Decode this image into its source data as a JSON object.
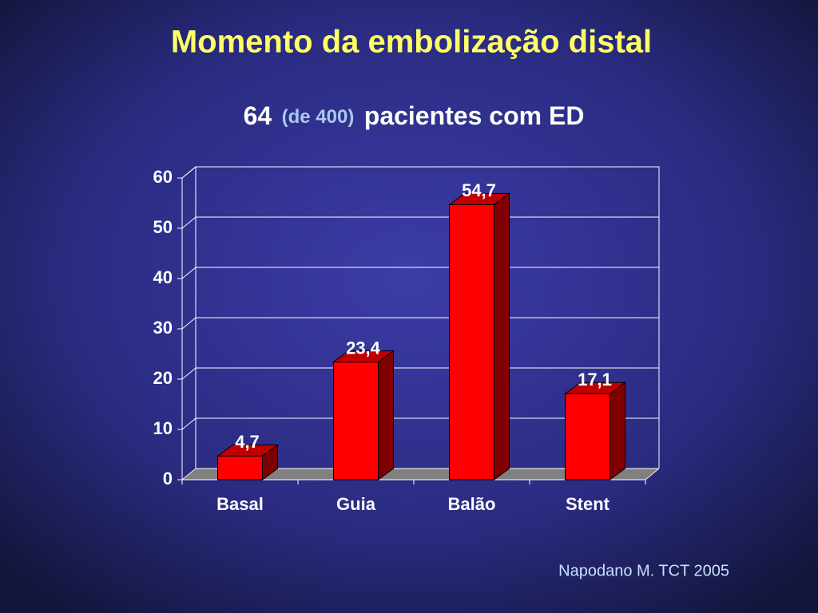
{
  "chart_data": {
    "type": "bar3d",
    "title": "Momento da embolização distal",
    "subtitle": [
      "64",
      "(de 400)",
      "pacientes com ED"
    ],
    "categories": [
      "Basal",
      "Guia",
      "Balão",
      "Stent"
    ],
    "values": [
      4.7,
      23.4,
      54.7,
      17.1
    ],
    "value_labels": [
      "4,7",
      "23,4",
      "54,7",
      "17,1"
    ],
    "color": "#ff0000",
    "ylim": [
      0,
      60
    ],
    "yticks": [
      0,
      10,
      20,
      30,
      40,
      50,
      60
    ],
    "grid": true,
    "source": "Napodano M. TCT 2005"
  }
}
